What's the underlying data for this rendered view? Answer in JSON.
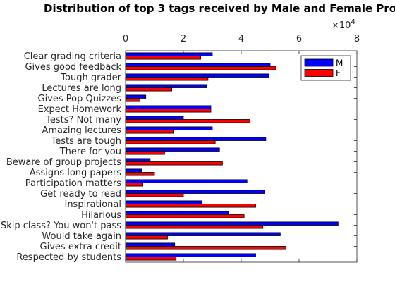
{
  "chart_data": {
    "type": "bar",
    "orientation": "horizontal",
    "title": "Distribution of top 3 tags received by Male and Female Pro",
    "x_multiplier": "×10",
    "x_multiplier_exp": "4",
    "xlim": [
      0,
      80000
    ],
    "xticks": [
      "0",
      "2",
      "4",
      "6",
      "8"
    ],
    "x_axis_position": "top",
    "legend_position": "top-right",
    "categories": [
      "Clear grading criteria",
      "Gives good feedback",
      "Tough grader",
      "Lectures are long",
      "Gives Pop Quizzes",
      "Expect Homework",
      "Tests? Not many",
      "Amazing lectures",
      "Tests are tough",
      "There for you",
      "Beware of group projects",
      "Assigns long papers",
      "Participation matters",
      "Get ready to read",
      "Inspirational",
      "Hilarious",
      "Skip class? You won't pass",
      "Would take again",
      "Gives extra credit",
      "Respected by students"
    ],
    "series": [
      {
        "name": "M",
        "color": "#0000ff",
        "values": [
          30000,
          50000,
          49500,
          28000,
          7000,
          29500,
          20000,
          30000,
          48500,
          32500,
          8500,
          5500,
          42000,
          48000,
          26500,
          35500,
          73500,
          53500,
          17000,
          45000
        ]
      },
      {
        "name": "F",
        "color": "#ff0000",
        "values": [
          26000,
          52000,
          28500,
          16000,
          5000,
          29500,
          43000,
          16500,
          31000,
          13500,
          33500,
          10000,
          6000,
          20000,
          45000,
          41000,
          47500,
          14500,
          55500,
          17500
        ]
      }
    ]
  }
}
